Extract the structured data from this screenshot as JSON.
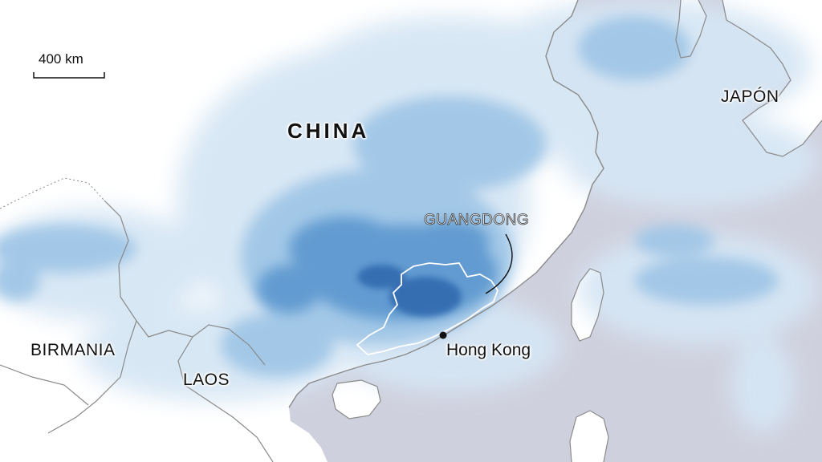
{
  "map": {
    "scale_bar": {
      "label": "400 km"
    },
    "labels": {
      "china": "CHINA",
      "japan": "JAPÓN",
      "burma": "BIRMANIA",
      "laos": "LAOS",
      "guangdong": "GUANGDONG",
      "hong_kong": "Hong Kong"
    },
    "colors": {
      "sea": "#cfd0dd",
      "land": "#ffffff",
      "rain_light": "#d6e6f4",
      "rain_medium": "#9ec5e6",
      "rain_strong": "#5b97cf",
      "rain_intense": "#2f67ad",
      "borders": "#8a8a8a",
      "province_outline": "#ffffff"
    }
  }
}
